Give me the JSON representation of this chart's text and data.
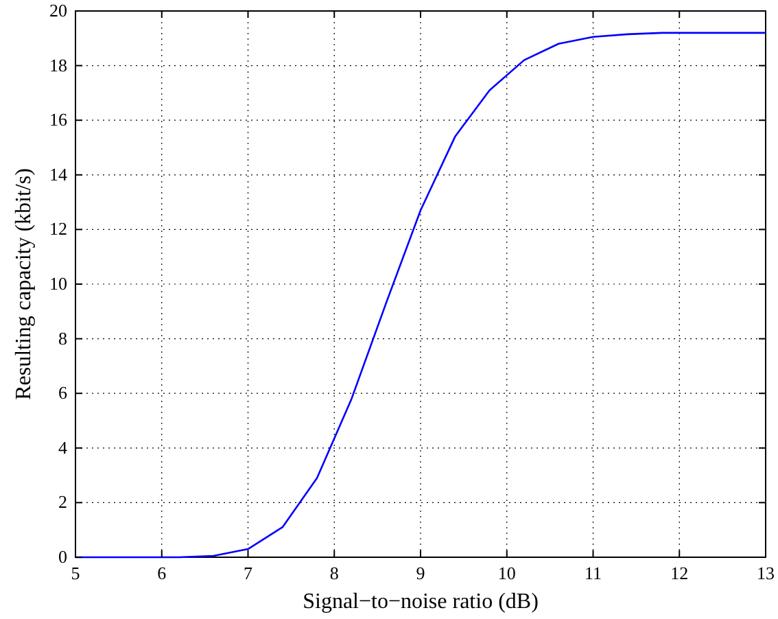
{
  "chart_data": {
    "type": "line",
    "xlabel": "Signal−to−noise ratio (dB)",
    "ylabel": "Resulting capacity (kbit/s)",
    "x": [
      5,
      5.4,
      5.8,
      6.2,
      6.6,
      7.0,
      7.4,
      7.8,
      8.2,
      8.6,
      9.0,
      9.4,
      9.8,
      10.2,
      10.6,
      11.0,
      11.4,
      11.8,
      12.2,
      12.6,
      13
    ],
    "series": [
      {
        "color": "#0000ff",
        "values": [
          0,
          0,
          0,
          0,
          0.05,
          0.3,
          1.1,
          2.9,
          5.8,
          9.3,
          12.7,
          15.4,
          17.1,
          18.2,
          18.8,
          19.05,
          19.15,
          19.2,
          19.2,
          19.2,
          19.2
        ]
      }
    ],
    "xlim": [
      5,
      13
    ],
    "ylim": [
      0,
      20
    ],
    "xticks": [
      5,
      6,
      7,
      8,
      9,
      10,
      11,
      12,
      13
    ],
    "yticks": [
      0,
      2,
      4,
      6,
      8,
      10,
      12,
      14,
      16,
      18,
      20
    ],
    "grid": true,
    "line_style": "solid",
    "marker": "none"
  }
}
